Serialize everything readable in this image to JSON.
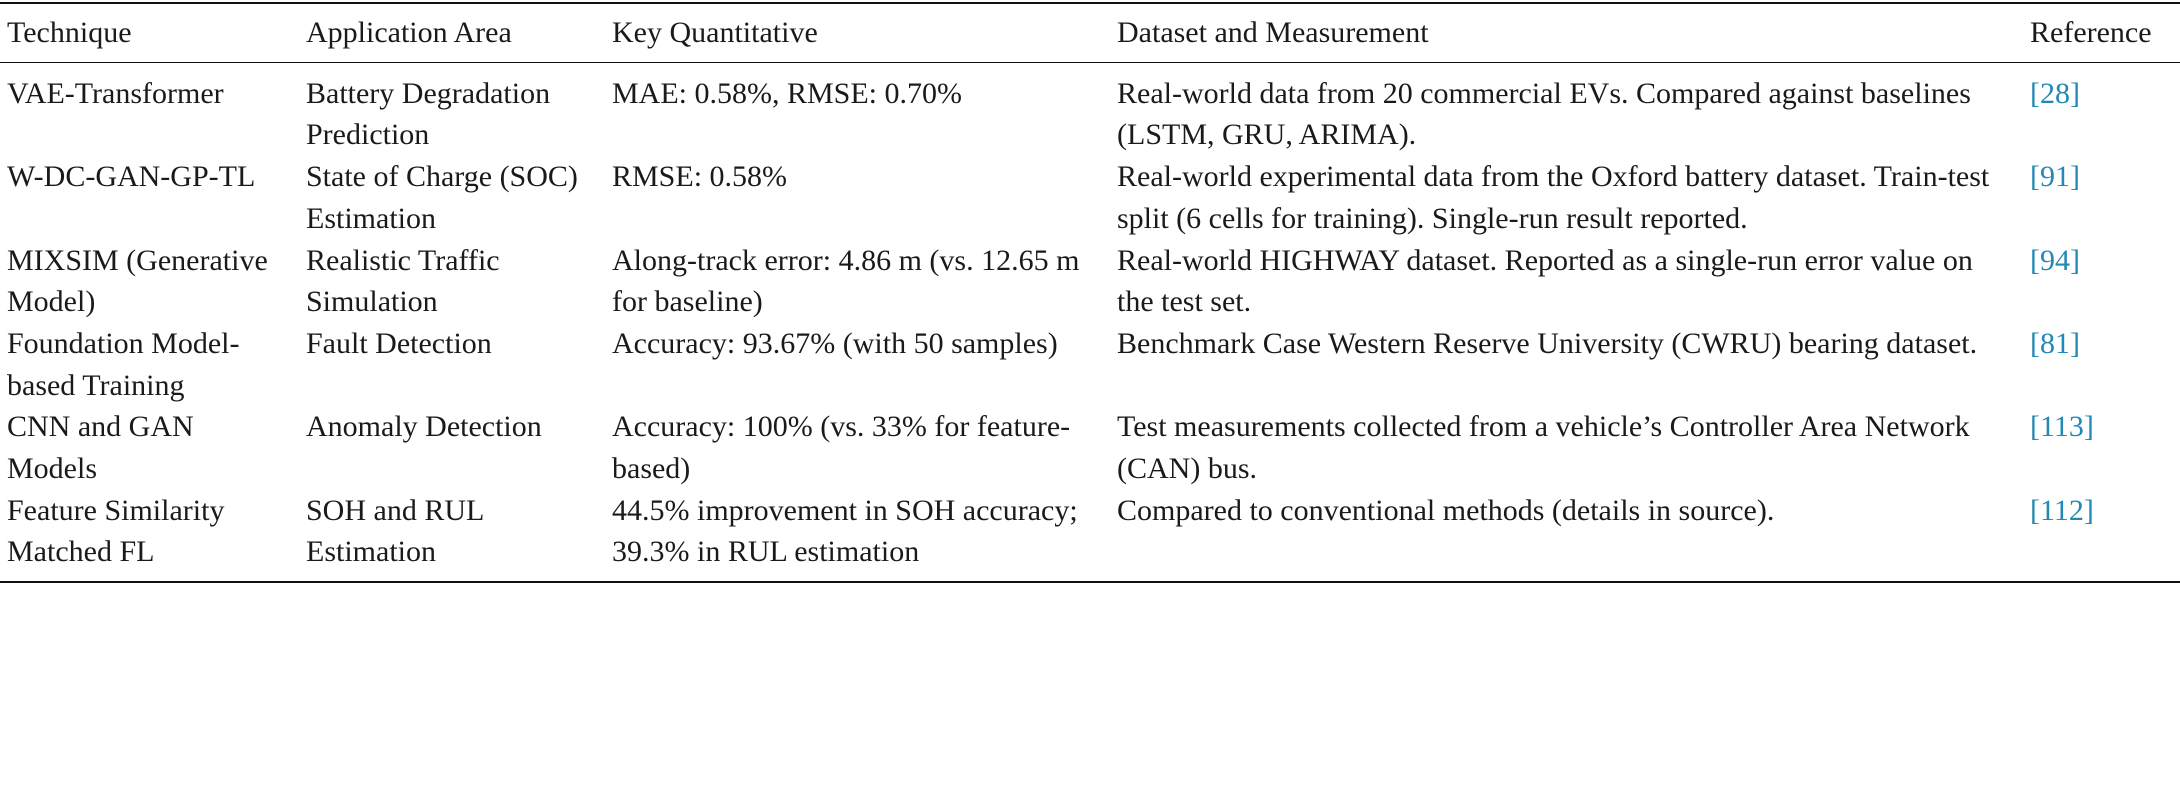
{
  "table": {
    "header": [
      "Technique",
      "Application Area",
      "Key Quantitative",
      "Dataset and Measurement",
      "Reference"
    ],
    "rows": [
      [
        "VAE-Transformer",
        "Battery Degradation Prediction",
        "MAE: 0.58%, RMSE: 0.70%",
        "Real-world data from 20 commercial EVs. Compared against baselines (LSTM, GRU, ARIMA).",
        "[28]"
      ],
      [
        "W-DC-GAN-GP-TL",
        "State of Charge (SOC) Estimation",
        "RMSE: 0.58%",
        "Real-world experimental data from the Oxford battery dataset. Train-test split (6 cells for training). Single-run result reported.",
        "[91]"
      ],
      [
        "MIXSIM (Generative Model)",
        "Realistic Traffic Simulation",
        "Along-track error: 4.86 m (vs. 12.65 m for baseline)",
        "Real-world HIGHWAY dataset. Reported as a single-run error value on the test set.",
        "[94]"
      ],
      [
        "Foundation Model-based Training",
        "Fault Detection",
        "Accuracy: 93.67% (with 50 samples)",
        "Benchmark Case Western Reserve University (CWRU) bearing dataset.",
        "[81]"
      ],
      [
        "CNN and GAN Models",
        "Anomaly Detection",
        "Accuracy: 100% (vs. 33% for feature-based)",
        "Test measurements collected from a vehicle’s Controller Area Network (CAN) bus.",
        "[113]"
      ],
      [
        "Feature Similarity Matched FL",
        "SOH and RUL Estimation",
        "44.5% improvement in SOH accuracy; 39.3% in RUL estimation",
        "Compared to conventional methods (details in source).",
        "[112]"
      ]
    ]
  }
}
